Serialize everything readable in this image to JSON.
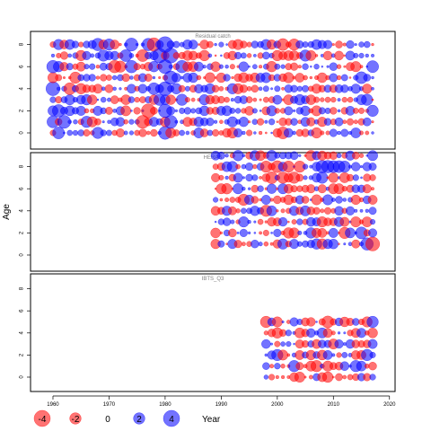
{
  "chart_data": {
    "type": "scatter",
    "ylabel": "Age",
    "xlim": [
      1956,
      2021
    ],
    "x_ticks": [
      "1960",
      "1970",
      "1980",
      "1990",
      "2000",
      "2010",
      "2020"
    ],
    "colors": {
      "positive": "#0000ff",
      "negative": "#ff0000",
      "alpha": 0.55
    },
    "legend": {
      "placement": "bottom",
      "entries": [
        {
          "label": "-4",
          "value": -4
        },
        {
          "label": "-2",
          "value": -2
        },
        {
          "label": "0",
          "value": 0
        },
        {
          "label": "2",
          "value": 2
        },
        {
          "label": "4",
          "value": 4
        }
      ],
      "axis_label": "Year"
    },
    "panels": [
      {
        "id": "catch",
        "title": "Residual catch",
        "years": [
          1960,
          2017
        ],
        "ages": [
          0,
          8
        ],
        "y_ticks": [
          "0",
          "2",
          "4",
          "6",
          "8"
        ],
        "highlights": [
          {
            "year": 1960,
            "age": 4,
            "value": 3.0
          },
          {
            "year": 1960,
            "age": 6,
            "value": 2.4
          },
          {
            "year": 1960,
            "age": 1,
            "value": 2.2
          },
          {
            "year": 1961,
            "age": 0,
            "value": 2.2
          },
          {
            "year": 1961,
            "age": 2,
            "value": 2.4
          },
          {
            "year": 1962,
            "age": 1,
            "value": 2.6
          },
          {
            "year": 1963,
            "age": 4,
            "value": -2.2
          },
          {
            "year": 1964,
            "age": 5,
            "value": -2.0
          },
          {
            "year": 1966,
            "age": 1,
            "value": 2.0
          },
          {
            "year": 1968,
            "age": 8,
            "value": 2.4
          },
          {
            "year": 1968,
            "age": 0,
            "value": 2.0
          },
          {
            "year": 1969,
            "age": 7,
            "value": 2.0
          },
          {
            "year": 1970,
            "age": 8,
            "value": 2.0
          },
          {
            "year": 1971,
            "age": 6,
            "value": -2.4
          },
          {
            "year": 1972,
            "age": 6,
            "value": -2.0
          },
          {
            "year": 1973,
            "age": 7,
            "value": 2.2
          },
          {
            "year": 1974,
            "age": 6,
            "value": 2.4
          },
          {
            "year": 1974,
            "age": 8,
            "value": 2.6
          },
          {
            "year": 1976,
            "age": 1,
            "value": -2.6
          },
          {
            "year": 1976,
            "age": 7,
            "value": -2.2
          },
          {
            "year": 1977,
            "age": 2,
            "value": -3.0
          },
          {
            "year": 1977,
            "age": 8,
            "value": 2.4
          },
          {
            "year": 1978,
            "age": 8,
            "value": -2.8
          },
          {
            "year": 1978,
            "age": 4,
            "value": 2.2
          },
          {
            "year": 1979,
            "age": 7,
            "value": 3.2
          },
          {
            "year": 1979,
            "age": 3,
            "value": 2.0
          },
          {
            "year": 1980,
            "age": 8,
            "value": 3.8
          },
          {
            "year": 1980,
            "age": 4,
            "value": 3.0
          },
          {
            "year": 1980,
            "age": 6,
            "value": 3.0
          },
          {
            "year": 1980,
            "age": 2,
            "value": 2.8
          },
          {
            "year": 1980,
            "age": 0,
            "value": 2.6
          },
          {
            "year": 1981,
            "age": 7,
            "value": 3.4
          },
          {
            "year": 1981,
            "age": 5,
            "value": 2.8
          },
          {
            "year": 1981,
            "age": 1,
            "value": 2.6
          },
          {
            "year": 1983,
            "age": 6,
            "value": 2.4
          },
          {
            "year": 1983,
            "age": 3,
            "value": 2.0
          },
          {
            "year": 2001,
            "age": 8,
            "value": -2.2
          },
          {
            "year": 2001,
            "age": 0,
            "value": -2.2
          },
          {
            "year": 2003,
            "age": 8,
            "value": -2.0
          },
          {
            "year": 2005,
            "age": 7,
            "value": 2.0
          },
          {
            "year": 2015,
            "age": 5,
            "value": 2.2
          },
          {
            "year": 2016,
            "age": 3,
            "value": 2.0
          },
          {
            "year": 2017,
            "age": 2,
            "value": 2.0
          },
          {
            "year": 2017,
            "age": 6,
            "value": 2.2
          }
        ]
      },
      {
        "id": "hers",
        "title": "HERAS",
        "years": [
          1989,
          2017
        ],
        "ages": [
          1,
          9
        ],
        "y_ticks": [
          "0",
          "2",
          "4",
          "6",
          "8"
        ],
        "highlights": [
          {
            "year": 1998,
            "age": 8,
            "value": -2.0
          },
          {
            "year": 1999,
            "age": 7,
            "value": -2.2
          },
          {
            "year": 2000,
            "age": 8,
            "value": -2.2
          },
          {
            "year": 2001,
            "age": 7,
            "value": -2.0
          },
          {
            "year": 2002,
            "age": 8,
            "value": -2.0
          },
          {
            "year": 2003,
            "age": 7,
            "value": -2.0
          },
          {
            "year": 2004,
            "age": 8,
            "value": -2.0
          },
          {
            "year": 1994,
            "age": 5,
            "value": -2.0
          },
          {
            "year": 1998,
            "age": 4,
            "value": -2.0
          },
          {
            "year": 2008,
            "age": 8,
            "value": 2.4
          },
          {
            "year": 2009,
            "age": 8,
            "value": 2.4
          },
          {
            "year": 2010,
            "age": 8,
            "value": 2.2
          },
          {
            "year": 2011,
            "age": 8,
            "value": 2.2
          },
          {
            "year": 2012,
            "age": 8,
            "value": 2.0
          },
          {
            "year": 2008,
            "age": 7,
            "value": 2.0
          },
          {
            "year": 2012,
            "age": 2,
            "value": -2.0
          },
          {
            "year": 2015,
            "age": 2,
            "value": 2.2
          },
          {
            "year": 2016,
            "age": 1,
            "value": 2.4
          },
          {
            "year": 2017,
            "age": 1,
            "value": -3.0
          }
        ]
      },
      {
        "id": "ibts",
        "title": "IBTS_Q3",
        "years": [
          1998,
          2017
        ],
        "ages": [
          0,
          5
        ],
        "y_ticks": [
          "0",
          "2",
          "4",
          "6",
          "8"
        ],
        "highlights": [
          {
            "year": 1998,
            "age": 5,
            "value": -2.0
          },
          {
            "year": 2000,
            "age": 2,
            "value": 2.0
          },
          {
            "year": 2003,
            "age": 1,
            "value": 2.0
          },
          {
            "year": 2007,
            "age": 1,
            "value": -2.0
          },
          {
            "year": 2009,
            "age": 5,
            "value": -2.2
          },
          {
            "year": 2014,
            "age": 1,
            "value": 2.0
          },
          {
            "year": 2016,
            "age": 2,
            "value": 2.0
          },
          {
            "year": 2017,
            "age": 5,
            "value": 2.0
          }
        ]
      }
    ]
  }
}
